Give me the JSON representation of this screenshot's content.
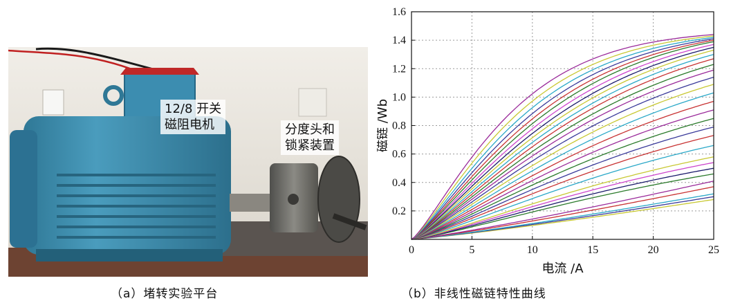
{
  "panel_a": {
    "motor_label_line1": "12/8 开关",
    "motor_label_line2": "磁阻电机",
    "device_label_line1": "分度头和",
    "device_label_line2": "锁紧装置",
    "caption": "（a）堵转实验平台"
  },
  "panel_b": {
    "caption": "（b）非线性磁链特性曲线"
  },
  "colors": {
    "motor_body": "#3f8fb0",
    "motor_dark": "#2a6a86",
    "chuck": "#6e6e6a",
    "floor": "#7a4a36",
    "wall": "#e8e4dc",
    "grid": "#9a9a9a"
  },
  "chart_data": {
    "type": "line",
    "xlabel": "电流 /A",
    "ylabel": "磁链 /Wb",
    "xlim": [
      0,
      25
    ],
    "ylim": [
      0,
      1.6
    ],
    "xticks": [
      0,
      5,
      10,
      15,
      20,
      25
    ],
    "yticks": [
      0.2,
      0.4,
      0.6,
      0.8,
      1.0,
      1.2,
      1.4,
      1.6
    ],
    "ytick_labels": [
      "0.2",
      "0.4",
      "0.6",
      "0.8",
      "1.0",
      "1.2",
      "1.4",
      "1.6"
    ],
    "xtick_labels": [
      "0",
      "5",
      "10",
      "15",
      "20",
      "25"
    ],
    "grid": true,
    "series_colors": [
      "#c8c832",
      "#3a3a9a",
      "#2aa8c8",
      "#c83232",
      "#9a2a9a",
      "#2a7a2a",
      "#1a1a6a",
      "#cc44cc",
      "#c8c832",
      "#2aa8c8",
      "#c83232",
      "#3a3a9a",
      "#2a7a2a",
      "#9a2a9a",
      "#c83232",
      "#2aa8c8",
      "#c8c832",
      "#3a3a9a",
      "#9a2a9a",
      "#2a7a2a",
      "#c83232",
      "#2aa8c8",
      "#c8c832",
      "#1a1a6a",
      "#cc44cc",
      "#2a7a2a",
      "#c83232",
      "#3a3a9a",
      "#2aa8c8",
      "#c8c832",
      "#9a2a9a"
    ],
    "series_end_values": [
      0.28,
      0.3,
      0.32,
      0.37,
      0.41,
      0.46,
      0.5,
      0.54,
      0.58,
      0.66,
      0.73,
      0.79,
      0.85,
      0.91,
      0.97,
      1.03,
      1.09,
      1.14,
      1.19,
      1.23,
      1.27,
      1.3,
      1.33,
      1.35,
      1.37,
      1.39,
      1.4,
      1.41,
      1.42,
      1.43,
      1.44
    ],
    "aligned_saturation": 1.47
  }
}
